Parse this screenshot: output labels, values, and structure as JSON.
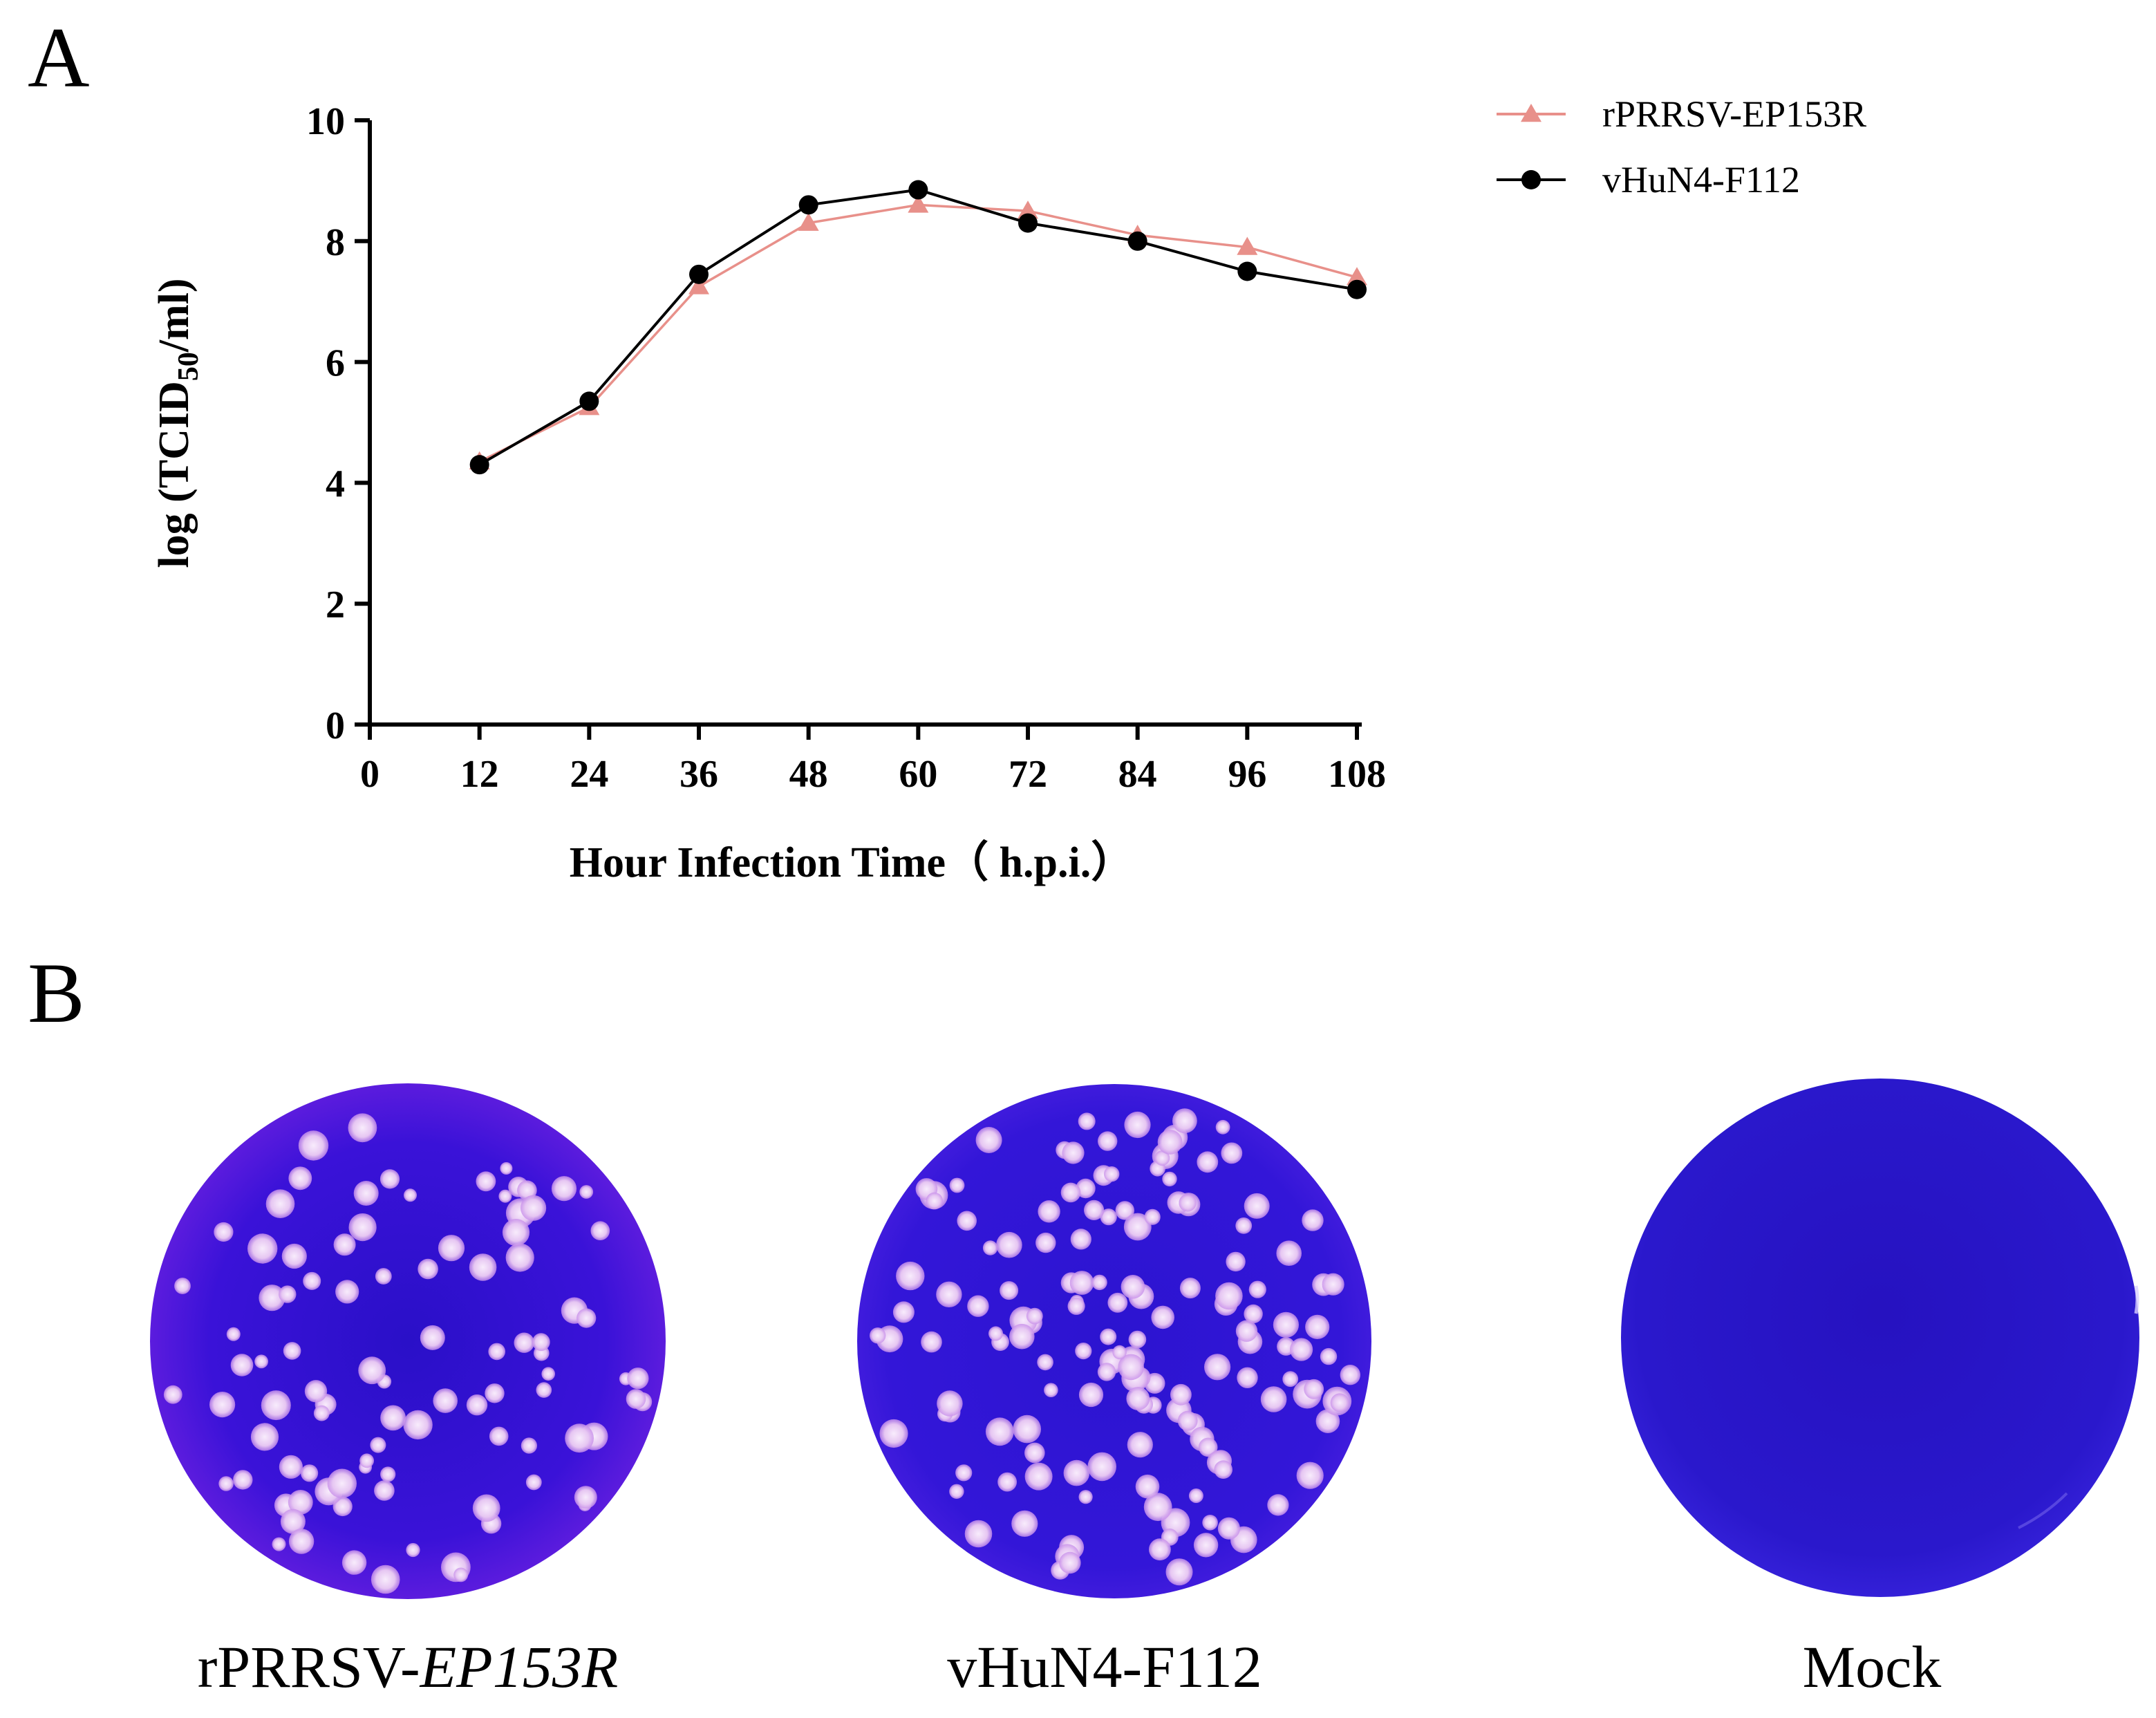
{
  "panels": {
    "a": "A",
    "b": "B"
  },
  "chart_data": {
    "type": "line",
    "title": "",
    "xlabel": "Hour Infection Time（ h.p.i.）",
    "ylabel_prefix": "log (TCID",
    "ylabel_sub": "50",
    "ylabel_suffix": "/ml)",
    "x": [
      12,
      24,
      36,
      48,
      60,
      72,
      84,
      96,
      108
    ],
    "xticks": [
      0,
      12,
      24,
      36,
      48,
      60,
      72,
      84,
      96,
      108
    ],
    "yticks": [
      0,
      2,
      4,
      6,
      8,
      10
    ],
    "xlim": [
      0,
      108
    ],
    "ylim": [
      0,
      10
    ],
    "legend_position": "top-right",
    "series": [
      {
        "name": "rPRRSV-EP153R",
        "marker": "triangle",
        "color": "#e8908a",
        "values": [
          4.35,
          5.25,
          7.25,
          8.3,
          8.6,
          8.5,
          8.1,
          7.9,
          7.4
        ]
      },
      {
        "name": "vHuN4-F112",
        "marker": "circle",
        "color": "#000000",
        "values": [
          4.3,
          5.35,
          7.45,
          8.6,
          8.85,
          8.3,
          8.0,
          7.5,
          7.2
        ]
      }
    ]
  },
  "plates": {
    "labels": [
      {
        "prefix": "rPRRSV-",
        "italic": "EP153R"
      },
      {
        "prefix": "vHuN4-F112",
        "italic": ""
      },
      {
        "prefix": "Mock",
        "italic": ""
      }
    ]
  },
  "colors": {
    "plate_blue": "#3a0ed8",
    "plate_deep": "#2810c0",
    "mock_blue": "#2a18c8",
    "plaque": "#e8c8f0",
    "plaque_core": "#f6e6fa",
    "glow": "#b040e0"
  }
}
